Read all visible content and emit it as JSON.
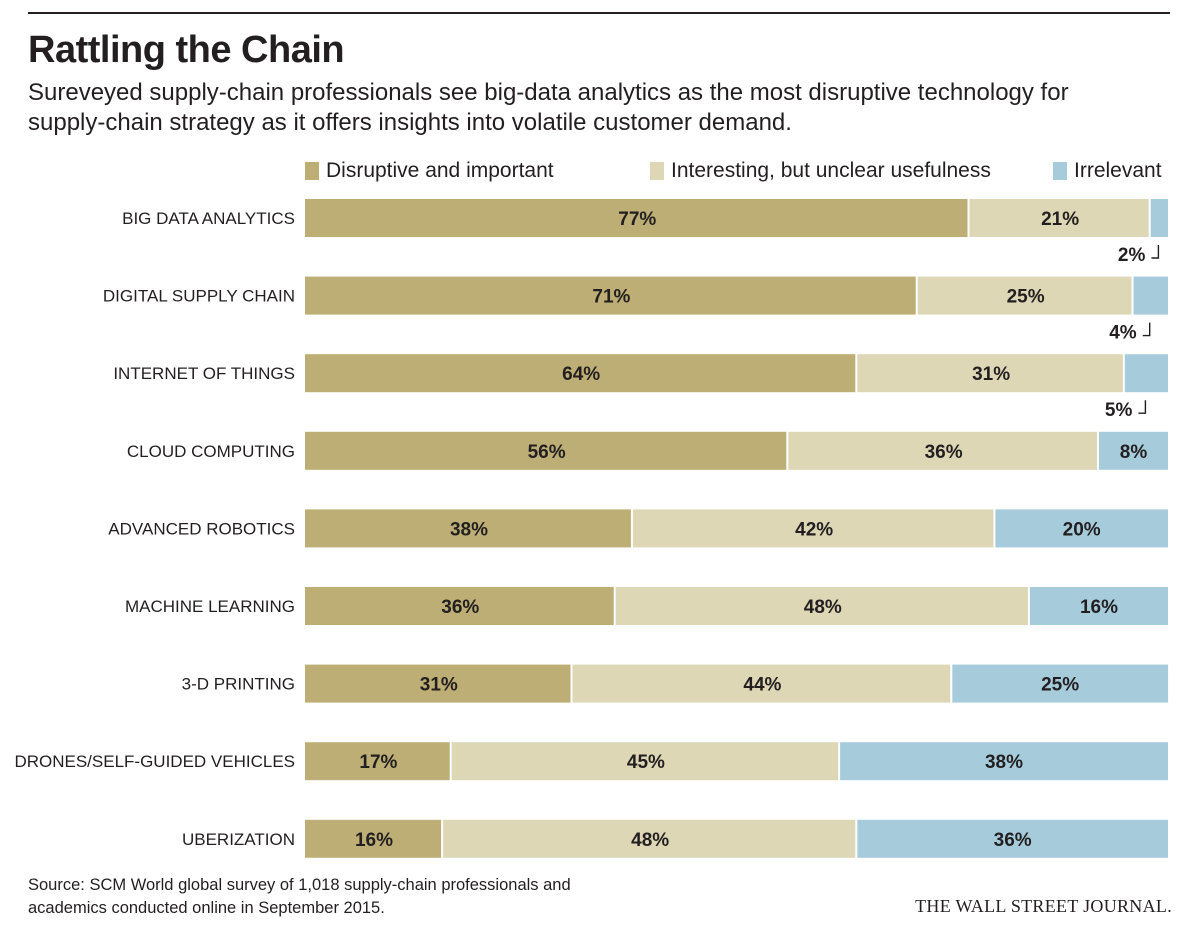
{
  "title": "Rattling the Chain",
  "subtitle": "Sureveyed supply-chain professionals see big-data analytics as the most disruptive technology for supply-chain strategy as it offers insights into volatile customer demand.",
  "legend": [
    {
      "label": "Disruptive and important",
      "color": "#bcae74"
    },
    {
      "label": "Interesting, but unclear usefulness",
      "color": "#ddd7b6"
    },
    {
      "label": "Irrelevant",
      "color": "#a6ccdc"
    }
  ],
  "source": "Source: SCM World global survey of 1,018 supply-chain professionals and academics conducted online in September 2015.",
  "brand": "THE WALL STREET JOURNAL.",
  "chart_data": {
    "type": "bar",
    "orientation": "horizontal",
    "stacked": true,
    "title": "Rattling the Chain",
    "categories": [
      "BIG DATA ANALYTICS",
      "DIGITAL SUPPLY CHAIN",
      "INTERNET OF THINGS",
      "CLOUD COMPUTING",
      "ADVANCED ROBOTICS",
      "MACHINE LEARNING",
      "3-D PRINTING",
      "DRONES/SELF-GUIDED VEHICLES",
      "UBERIZATION"
    ],
    "series": [
      {
        "name": "Disruptive and important",
        "color": "#bcae74",
        "values": [
          77,
          71,
          64,
          56,
          38,
          36,
          31,
          17,
          16
        ]
      },
      {
        "name": "Interesting, but unclear usefulness",
        "color": "#ddd7b6",
        "values": [
          21,
          25,
          31,
          36,
          42,
          48,
          44,
          45,
          48
        ]
      },
      {
        "name": "Irrelevant",
        "color": "#a6ccdc",
        "values": [
          2,
          4,
          5,
          8,
          20,
          16,
          25,
          38,
          36
        ]
      }
    ],
    "value_suffix": "%",
    "legend_position": "top",
    "grid": false
  }
}
